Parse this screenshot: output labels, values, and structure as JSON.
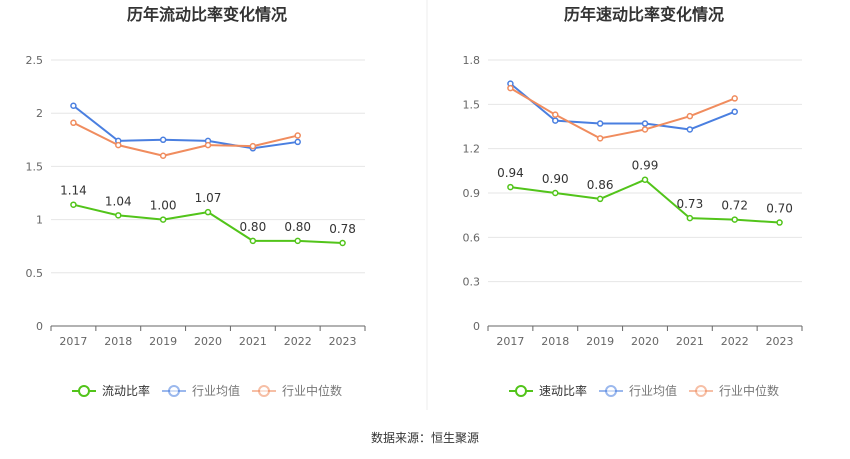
{
  "chart_data": [
    {
      "type": "line",
      "title": "历年流动比率变化情况",
      "categories": [
        "2017",
        "2018",
        "2019",
        "2020",
        "2021",
        "2022",
        "2023"
      ],
      "ylim": [
        0,
        2.5
      ],
      "yticks": [
        "0",
        "0.5",
        "1",
        "1.5",
        "2",
        "2.5"
      ],
      "grid": true,
      "legend_position": "bottom",
      "series": [
        {
          "name": "流动比率",
          "color": "#52c41a",
          "values": [
            1.14,
            1.04,
            1.0,
            1.07,
            0.8,
            0.8,
            0.78
          ],
          "labels": [
            "1.14",
            "1.04",
            "1.00",
            "1.07",
            "0.80",
            "0.80",
            "0.78"
          ]
        },
        {
          "name": "行业均值",
          "color": "#4a7fe0",
          "values": [
            2.07,
            1.74,
            1.75,
            1.74,
            1.67,
            1.73,
            null
          ]
        },
        {
          "name": "行业中位数",
          "color": "#f08c5e",
          "values": [
            1.91,
            1.7,
            1.6,
            1.7,
            1.69,
            1.79,
            null
          ]
        }
      ]
    },
    {
      "type": "line",
      "title": "历年速动比率变化情况",
      "categories": [
        "2017",
        "2018",
        "2019",
        "2020",
        "2021",
        "2022",
        "2023"
      ],
      "ylim": [
        0,
        1.8
      ],
      "yticks": [
        "0",
        "0.3",
        "0.6",
        "0.9",
        "1.2",
        "1.5",
        "1.8"
      ],
      "grid": true,
      "legend_position": "bottom",
      "series": [
        {
          "name": "速动比率",
          "color": "#52c41a",
          "values": [
            0.94,
            0.9,
            0.86,
            0.99,
            0.73,
            0.72,
            0.7
          ],
          "labels": [
            "0.94",
            "0.90",
            "0.86",
            "0.99",
            "0.73",
            "0.72",
            "0.70"
          ]
        },
        {
          "name": "行业均值",
          "color": "#4a7fe0",
          "values": [
            1.64,
            1.39,
            1.37,
            1.37,
            1.33,
            1.45,
            null
          ]
        },
        {
          "name": "行业中位数",
          "color": "#f08c5e",
          "values": [
            1.61,
            1.43,
            1.27,
            1.33,
            1.42,
            1.54,
            null
          ]
        }
      ]
    }
  ],
  "source": "数据来源：恒生聚源"
}
